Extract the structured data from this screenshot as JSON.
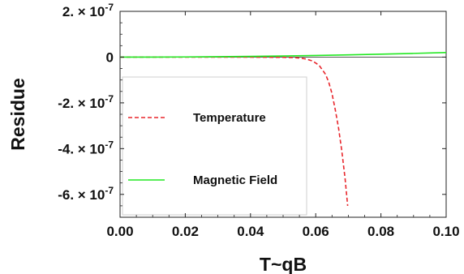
{
  "chart_data": {
    "type": "line",
    "xlabel": "T~qB",
    "ylabel": "Residue",
    "xlim": [
      0.0,
      0.1
    ],
    "ylim": [
      -7e-07,
      2e-07
    ],
    "x_ticks": [
      {
        "value": 0.0,
        "label": "0.00"
      },
      {
        "value": 0.02,
        "label": "0.02"
      },
      {
        "value": 0.04,
        "label": "0.04"
      },
      {
        "value": 0.06,
        "label": "0.06"
      },
      {
        "value": 0.08,
        "label": "0.08"
      },
      {
        "value": 0.1,
        "label": "0.10"
      }
    ],
    "y_ticks": [
      {
        "value": 2e-07,
        "mantissa": "2.",
        "base": "10",
        "exp": "-7"
      },
      {
        "value": 0,
        "mantissa": "0",
        "base": "",
        "exp": ""
      },
      {
        "value": -2e-07,
        "mantissa": "-2.",
        "base": "10",
        "exp": "-7"
      },
      {
        "value": -4e-07,
        "mantissa": "-4.",
        "base": "10",
        "exp": "-7"
      },
      {
        "value": -6e-07,
        "mantissa": "-6.",
        "base": "10",
        "exp": "-7"
      }
    ],
    "times_sign": "×",
    "grid": false,
    "zero_line": true,
    "legend_position": "left-inside",
    "series": [
      {
        "name": "Temperature",
        "color": "#e8262c",
        "style": "dashed",
        "x": [
          0.0,
          0.01,
          0.02,
          0.03,
          0.04,
          0.045,
          0.05,
          0.053,
          0.055,
          0.057,
          0.059,
          0.061,
          0.063,
          0.064,
          0.065,
          0.066,
          0.067,
          0.068,
          0.069,
          0.0698
        ],
        "y": [
          0,
          0,
          0,
          0,
          -2e-10,
          -5e-10,
          -1e-09,
          -2e-09,
          -4e-09,
          -8e-09,
          -1.7e-08,
          -3.5e-08,
          -7.5e-08,
          -1.1e-07,
          -1.6e-07,
          -2.3e-07,
          -3.1e-07,
          -4.1e-07,
          -5.3e-07,
          -6.5e-07
        ]
      },
      {
        "name": "Magnetic Field",
        "color": "#22e822",
        "style": "solid",
        "x": [
          0.0,
          0.01,
          0.02,
          0.03,
          0.04,
          0.05,
          0.06,
          0.07,
          0.08,
          0.09,
          0.1
        ],
        "y": [
          0,
          2e-10,
          7e-10,
          1.7e-09,
          3.2e-09,
          5e-09,
          7.2e-09,
          9.8e-09,
          1.28e-08,
          1.62e-08,
          2e-08
        ]
      }
    ]
  },
  "colors": {
    "axis": "#222222",
    "legend_border": "#cfcfcf",
    "zero_line": "#555555"
  }
}
